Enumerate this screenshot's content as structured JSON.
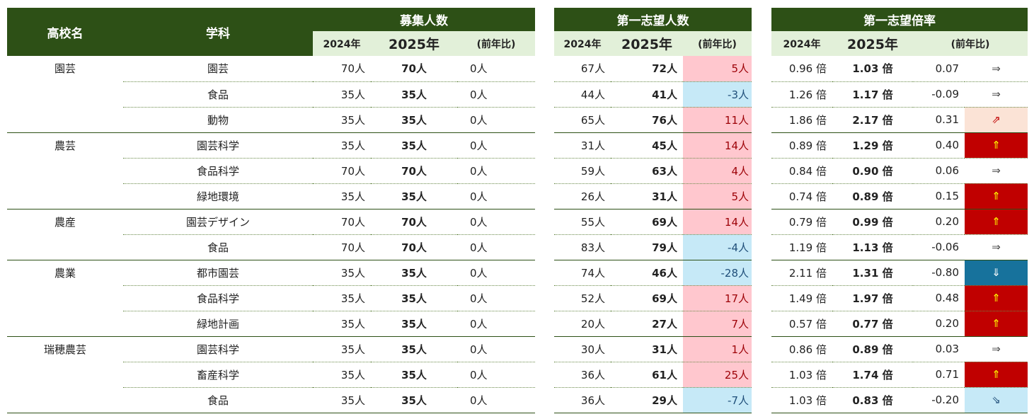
{
  "headers": {
    "school": "高校名",
    "dept": "学科",
    "recruit_title": "募集人数",
    "first_choice_title": "第一志望人数",
    "ratio_title": "第一志望倍率",
    "y2024": "2024年",
    "y2025": "2025年",
    "yoy": "(前年比)"
  },
  "rows": [
    {
      "school": "園芸",
      "dept": "園芸",
      "r24": "70人",
      "r25": "70人",
      "rd": "0人",
      "f24": "67人",
      "f25": "72人",
      "fd": "5人",
      "fd_sign": "pos",
      "q24": "0.96 倍",
      "q25": "1.03 倍",
      "qd": "0.07",
      "arrow": "⇒",
      "arrow_type": "flat"
    },
    {
      "school": "",
      "dept": "食品",
      "r24": "35人",
      "r25": "35人",
      "rd": "0人",
      "f24": "44人",
      "f25": "41人",
      "fd": "-3人",
      "fd_sign": "neg",
      "q24": "1.26 倍",
      "q25": "1.17 倍",
      "qd": "-0.09",
      "arrow": "⇒",
      "arrow_type": "flat"
    },
    {
      "school": "",
      "dept": "動物",
      "r24": "35人",
      "r25": "35人",
      "rd": "0人",
      "f24": "65人",
      "f25": "76人",
      "fd": "11人",
      "fd_sign": "pos",
      "q24": "1.86 倍",
      "q25": "2.17 倍",
      "qd": "0.31",
      "arrow": "⇗",
      "arrow_type": "up-light"
    },
    {
      "school": "農芸",
      "dept": "園芸科学",
      "r24": "35人",
      "r25": "35人",
      "rd": "0人",
      "f24": "31人",
      "f25": "45人",
      "fd": "14人",
      "fd_sign": "pos",
      "q24": "0.89 倍",
      "q25": "1.29 倍",
      "qd": "0.40",
      "arrow": "⇑",
      "arrow_type": "up-strong"
    },
    {
      "school": "",
      "dept": "食品科学",
      "r24": "70人",
      "r25": "70人",
      "rd": "0人",
      "f24": "59人",
      "f25": "63人",
      "fd": "4人",
      "fd_sign": "pos",
      "q24": "0.84 倍",
      "q25": "0.90 倍",
      "qd": "0.06",
      "arrow": "⇒",
      "arrow_type": "flat"
    },
    {
      "school": "",
      "dept": "緑地環境",
      "r24": "35人",
      "r25": "35人",
      "rd": "0人",
      "f24": "26人",
      "f25": "31人",
      "fd": "5人",
      "fd_sign": "pos",
      "q24": "0.74 倍",
      "q25": "0.89 倍",
      "qd": "0.15",
      "arrow": "⇑",
      "arrow_type": "up-strong"
    },
    {
      "school": "農産",
      "dept": "園芸デザイン",
      "r24": "70人",
      "r25": "70人",
      "rd": "0人",
      "f24": "55人",
      "f25": "69人",
      "fd": "14人",
      "fd_sign": "pos",
      "q24": "0.79 倍",
      "q25": "0.99 倍",
      "qd": "0.20",
      "arrow": "⇑",
      "arrow_type": "up-strong"
    },
    {
      "school": "",
      "dept": "食品",
      "r24": "70人",
      "r25": "70人",
      "rd": "0人",
      "f24": "83人",
      "f25": "79人",
      "fd": "-4人",
      "fd_sign": "neg",
      "q24": "1.19 倍",
      "q25": "1.13 倍",
      "qd": "-0.06",
      "arrow": "⇒",
      "arrow_type": "flat"
    },
    {
      "school": "農業",
      "dept": "都市園芸",
      "r24": "35人",
      "r25": "35人",
      "rd": "0人",
      "f24": "74人",
      "f25": "46人",
      "fd": "-28人",
      "fd_sign": "neg",
      "q24": "2.11 倍",
      "q25": "1.31 倍",
      "qd": "-0.80",
      "arrow": "⇓",
      "arrow_type": "down-strong"
    },
    {
      "school": "",
      "dept": "食品科学",
      "r24": "35人",
      "r25": "35人",
      "rd": "0人",
      "f24": "52人",
      "f25": "69人",
      "fd": "17人",
      "fd_sign": "pos",
      "q24": "1.49 倍",
      "q25": "1.97 倍",
      "qd": "0.48",
      "arrow": "⇑",
      "arrow_type": "up-strong"
    },
    {
      "school": "",
      "dept": "緑地計画",
      "r24": "35人",
      "r25": "35人",
      "rd": "0人",
      "f24": "20人",
      "f25": "27人",
      "fd": "7人",
      "fd_sign": "pos",
      "q24": "0.57 倍",
      "q25": "0.77 倍",
      "qd": "0.20",
      "arrow": "⇑",
      "arrow_type": "up-strong"
    },
    {
      "school": "瑞穂農芸",
      "dept": "園芸科学",
      "r24": "35人",
      "r25": "35人",
      "rd": "0人",
      "f24": "30人",
      "f25": "31人",
      "fd": "1人",
      "fd_sign": "pos",
      "q24": "0.86 倍",
      "q25": "0.89 倍",
      "qd": "0.03",
      "arrow": "⇒",
      "arrow_type": "flat"
    },
    {
      "school": "",
      "dept": "畜産科学",
      "r24": "35人",
      "r25": "35人",
      "rd": "0人",
      "f24": "36人",
      "f25": "61人",
      "fd": "25人",
      "fd_sign": "pos",
      "q24": "1.03 倍",
      "q25": "1.74 倍",
      "qd": "0.71",
      "arrow": "⇑",
      "arrow_type": "up-strong"
    },
    {
      "school": "",
      "dept": "食品",
      "r24": "35人",
      "r25": "35人",
      "rd": "0人",
      "f24": "36人",
      "f25": "29人",
      "fd": "-7人",
      "fd_sign": "neg",
      "q24": "1.03 倍",
      "q25": "0.83 倍",
      "qd": "-0.20",
      "arrow": "⇘",
      "arrow_type": "down-light"
    }
  ],
  "group_ends": [
    2,
    5,
    7,
    10,
    13
  ],
  "colors": {
    "header_dark": "#2d5016",
    "header_light": "#e2f0d9",
    "pos_fill": "#ffc7ce",
    "neg_fill": "#c6e9f7",
    "up_strong": "#c00000",
    "down_strong": "#17729c"
  }
}
